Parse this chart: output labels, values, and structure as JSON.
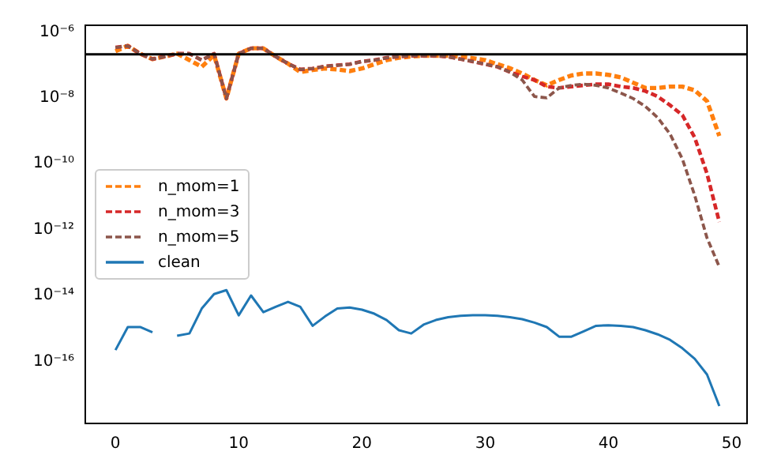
{
  "chart_data": {
    "type": "line",
    "x": [
      0,
      1,
      2,
      3,
      4,
      5,
      6,
      7,
      8,
      9,
      10,
      11,
      12,
      13,
      14,
      15,
      16,
      17,
      18,
      19,
      20,
      21,
      22,
      23,
      24,
      25,
      26,
      27,
      28,
      29,
      30,
      31,
      32,
      33,
      34,
      35,
      36,
      37,
      38,
      39,
      40,
      41,
      42,
      43,
      44,
      45,
      46,
      47,
      48,
      49
    ],
    "series": [
      {
        "name": "n_mom=1",
        "color": "#ff7f0e",
        "line_style": "dashed",
        "values": [
          2.6e-07,
          3.8e-07,
          2.2e-07,
          1.5e-07,
          1.8e-07,
          2.2e-07,
          1.4e-07,
          8.8e-08,
          2e-07,
          9.6e-09,
          2.2e-07,
          3.2e-07,
          3.2e-07,
          1.8e-07,
          1.1e-07,
          6.1e-08,
          7e-08,
          7.8e-08,
          7.3e-08,
          6.5e-08,
          7.8e-08,
          1.05e-07,
          1.4e-07,
          1.65e-07,
          1.8e-07,
          1.9e-07,
          1.9e-07,
          1.9e-07,
          1.77e-07,
          1.6e-07,
          1.4e-07,
          1.05e-07,
          8e-08,
          5.5e-08,
          3.5e-08,
          2.4e-08,
          3.5e-08,
          4.8e-08,
          5.5e-08,
          5.5e-08,
          5e-08,
          4.2e-08,
          2.9e-08,
          2e-08,
          2e-08,
          2.2e-08,
          2.2e-08,
          1.7e-08,
          8e-09,
          7e-10
        ]
      },
      {
        "name": "n_mom=3",
        "color": "#d62728",
        "line_style": "dashed",
        "values": [
          3.4e-07,
          3.8e-07,
          2.2e-07,
          1.5e-07,
          1.8e-07,
          2.2e-07,
          2.2e-07,
          1.4e-07,
          2.2e-07,
          9.6e-09,
          2.2e-07,
          3.2e-07,
          3.2e-07,
          1.8e-07,
          1.1e-07,
          7.3e-08,
          7.8e-08,
          9.1e-08,
          9.8e-08,
          1.05e-07,
          1.27e-07,
          1.4e-07,
          1.65e-07,
          1.8e-07,
          1.9e-07,
          1.9e-07,
          1.9e-07,
          1.77e-07,
          1.5e-07,
          1.27e-07,
          1.05e-07,
          8.8e-08,
          6.1e-08,
          4.5e-08,
          3.5e-08,
          2.2e-08,
          2e-08,
          2.2e-08,
          2.4e-08,
          2.6e-08,
          2.6e-08,
          2.2e-08,
          2e-08,
          1.6e-08,
          1.1e-08,
          6e-09,
          3e-09,
          6.3e-10,
          5e-11,
          1.7e-12
        ]
      },
      {
        "name": "n_mom=5",
        "color": "#8c564b",
        "line_style": "dashed",
        "values": [
          3.4e-07,
          3.8e-07,
          2.2e-07,
          1.5e-07,
          1.8e-07,
          2.2e-07,
          2.2e-07,
          1.4e-07,
          2.2e-07,
          9.6e-09,
          2.2e-07,
          3.2e-07,
          3.2e-07,
          1.8e-07,
          1.1e-07,
          7.3e-08,
          7.8e-08,
          9.1e-08,
          9.8e-08,
          1.05e-07,
          1.27e-07,
          1.4e-07,
          1.65e-07,
          1.8e-07,
          1.9e-07,
          1.9e-07,
          1.9e-07,
          1.77e-07,
          1.5e-07,
          1.27e-07,
          1.05e-07,
          8.8e-08,
          6.1e-08,
          3.5e-08,
          1.1e-08,
          1e-08,
          2e-08,
          2.4e-08,
          2.6e-08,
          2.4e-08,
          2e-08,
          1.4e-08,
          9.6e-09,
          5.5e-09,
          2.5e-09,
          8e-10,
          1.4e-10,
          1.1e-11,
          5.6e-13,
          7.4e-14
        ]
      },
      {
        "name": "clean",
        "color": "#1f77b4",
        "line_style": "solid",
        "values": [
          2.2e-16,
          1.1e-15,
          1.1e-15,
          7.6e-16,
          null,
          6e-16,
          7e-16,
          4e-15,
          1.1e-14,
          1.45e-14,
          2.5e-15,
          1e-14,
          3.1e-15,
          4.5e-15,
          6.4e-15,
          4.5e-15,
          1.2e-15,
          2.3e-15,
          4e-15,
          4.3e-15,
          3.7e-15,
          2.8e-15,
          1.8e-15,
          8.8e-16,
          7e-16,
          1.3e-15,
          1.8e-15,
          2.2e-15,
          2.4e-15,
          2.5e-15,
          2.5e-15,
          2.4e-15,
          2.2e-15,
          1.9e-15,
          1.5e-15,
          1.1e-15,
          5.6e-16,
          5.6e-16,
          8.2e-16,
          1.2e-15,
          1.25e-15,
          1.2e-15,
          1.1e-15,
          8.8e-16,
          6.6e-16,
          4.5e-16,
          2.5e-16,
          1.2e-16,
          4e-17,
          4.4e-18
        ]
      }
    ],
    "log": "y",
    "xlim": [
      -2.45,
      51.25
    ],
    "xticks": [
      0,
      10,
      20,
      30,
      40,
      50
    ],
    "ylim": [
      1.3e-18,
      1.6e-06
    ],
    "yticks": [
      {
        "value": 1e-06,
        "label": "10⁻⁶"
      },
      {
        "value": 1e-08,
        "label": "10⁻⁸"
      },
      {
        "value": 1e-10,
        "label": "10⁻¹⁰"
      },
      {
        "value": 1e-12,
        "label": "10⁻¹²"
      },
      {
        "value": 1e-14,
        "label": "10⁻¹⁴"
      },
      {
        "value": 1e-16,
        "label": "10⁻¹⁶"
      }
    ],
    "ref_lines": [
      {
        "axis": "y",
        "value": 2.1e-07,
        "color": "#000000",
        "line_style": "solid"
      }
    ],
    "legend": "center left",
    "grid": false,
    "marker": "none"
  }
}
